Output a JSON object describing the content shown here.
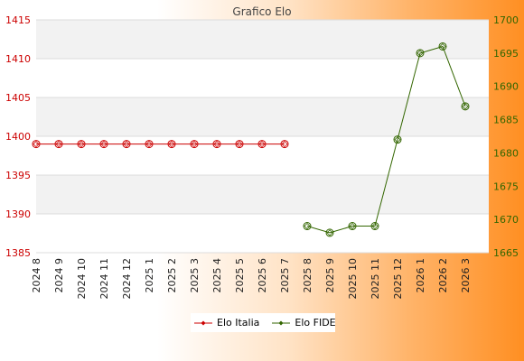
{
  "chart_data": {
    "type": "line",
    "title": "Grafico Elo",
    "categories": [
      "2024 8",
      "2024 9",
      "2024 10",
      "2024 11",
      "2024 12",
      "2025 1",
      "2025 2",
      "2025 3",
      "2025 4",
      "2025 5",
      "2025 6",
      "2025 7",
      "2025 8",
      "2025 9",
      "2025 10",
      "2025 11",
      "2025 12",
      "2026 1",
      "2026 2",
      "2026 3"
    ],
    "y_left": {
      "min": 1385,
      "max": 1415,
      "ticks": [
        1385,
        1390,
        1395,
        1400,
        1405,
        1410,
        1415
      ],
      "color": "#cc0000"
    },
    "y_right": {
      "min": 1665,
      "max": 1700,
      "ticks": [
        1665,
        1670,
        1675,
        1680,
        1685,
        1690,
        1695,
        1700
      ],
      "color": "#336600"
    },
    "grid": "horizontal, alternating bands",
    "legend_position": "bottom",
    "series": [
      {
        "name": "Elo Italia",
        "axis": "left",
        "color": "#cc0000",
        "values": [
          1399,
          1399,
          1399,
          1399,
          1399,
          1399,
          1399,
          1399,
          1399,
          1399,
          1399,
          1399,
          null,
          null,
          null,
          null,
          null,
          null,
          null,
          null
        ]
      },
      {
        "name": "Elo FIDE",
        "axis": "right",
        "color": "#336600",
        "values": [
          null,
          null,
          null,
          null,
          null,
          null,
          null,
          null,
          null,
          null,
          null,
          null,
          1669,
          1668,
          1669,
          1669,
          1682,
          1695,
          1696,
          1687
        ]
      }
    ]
  }
}
